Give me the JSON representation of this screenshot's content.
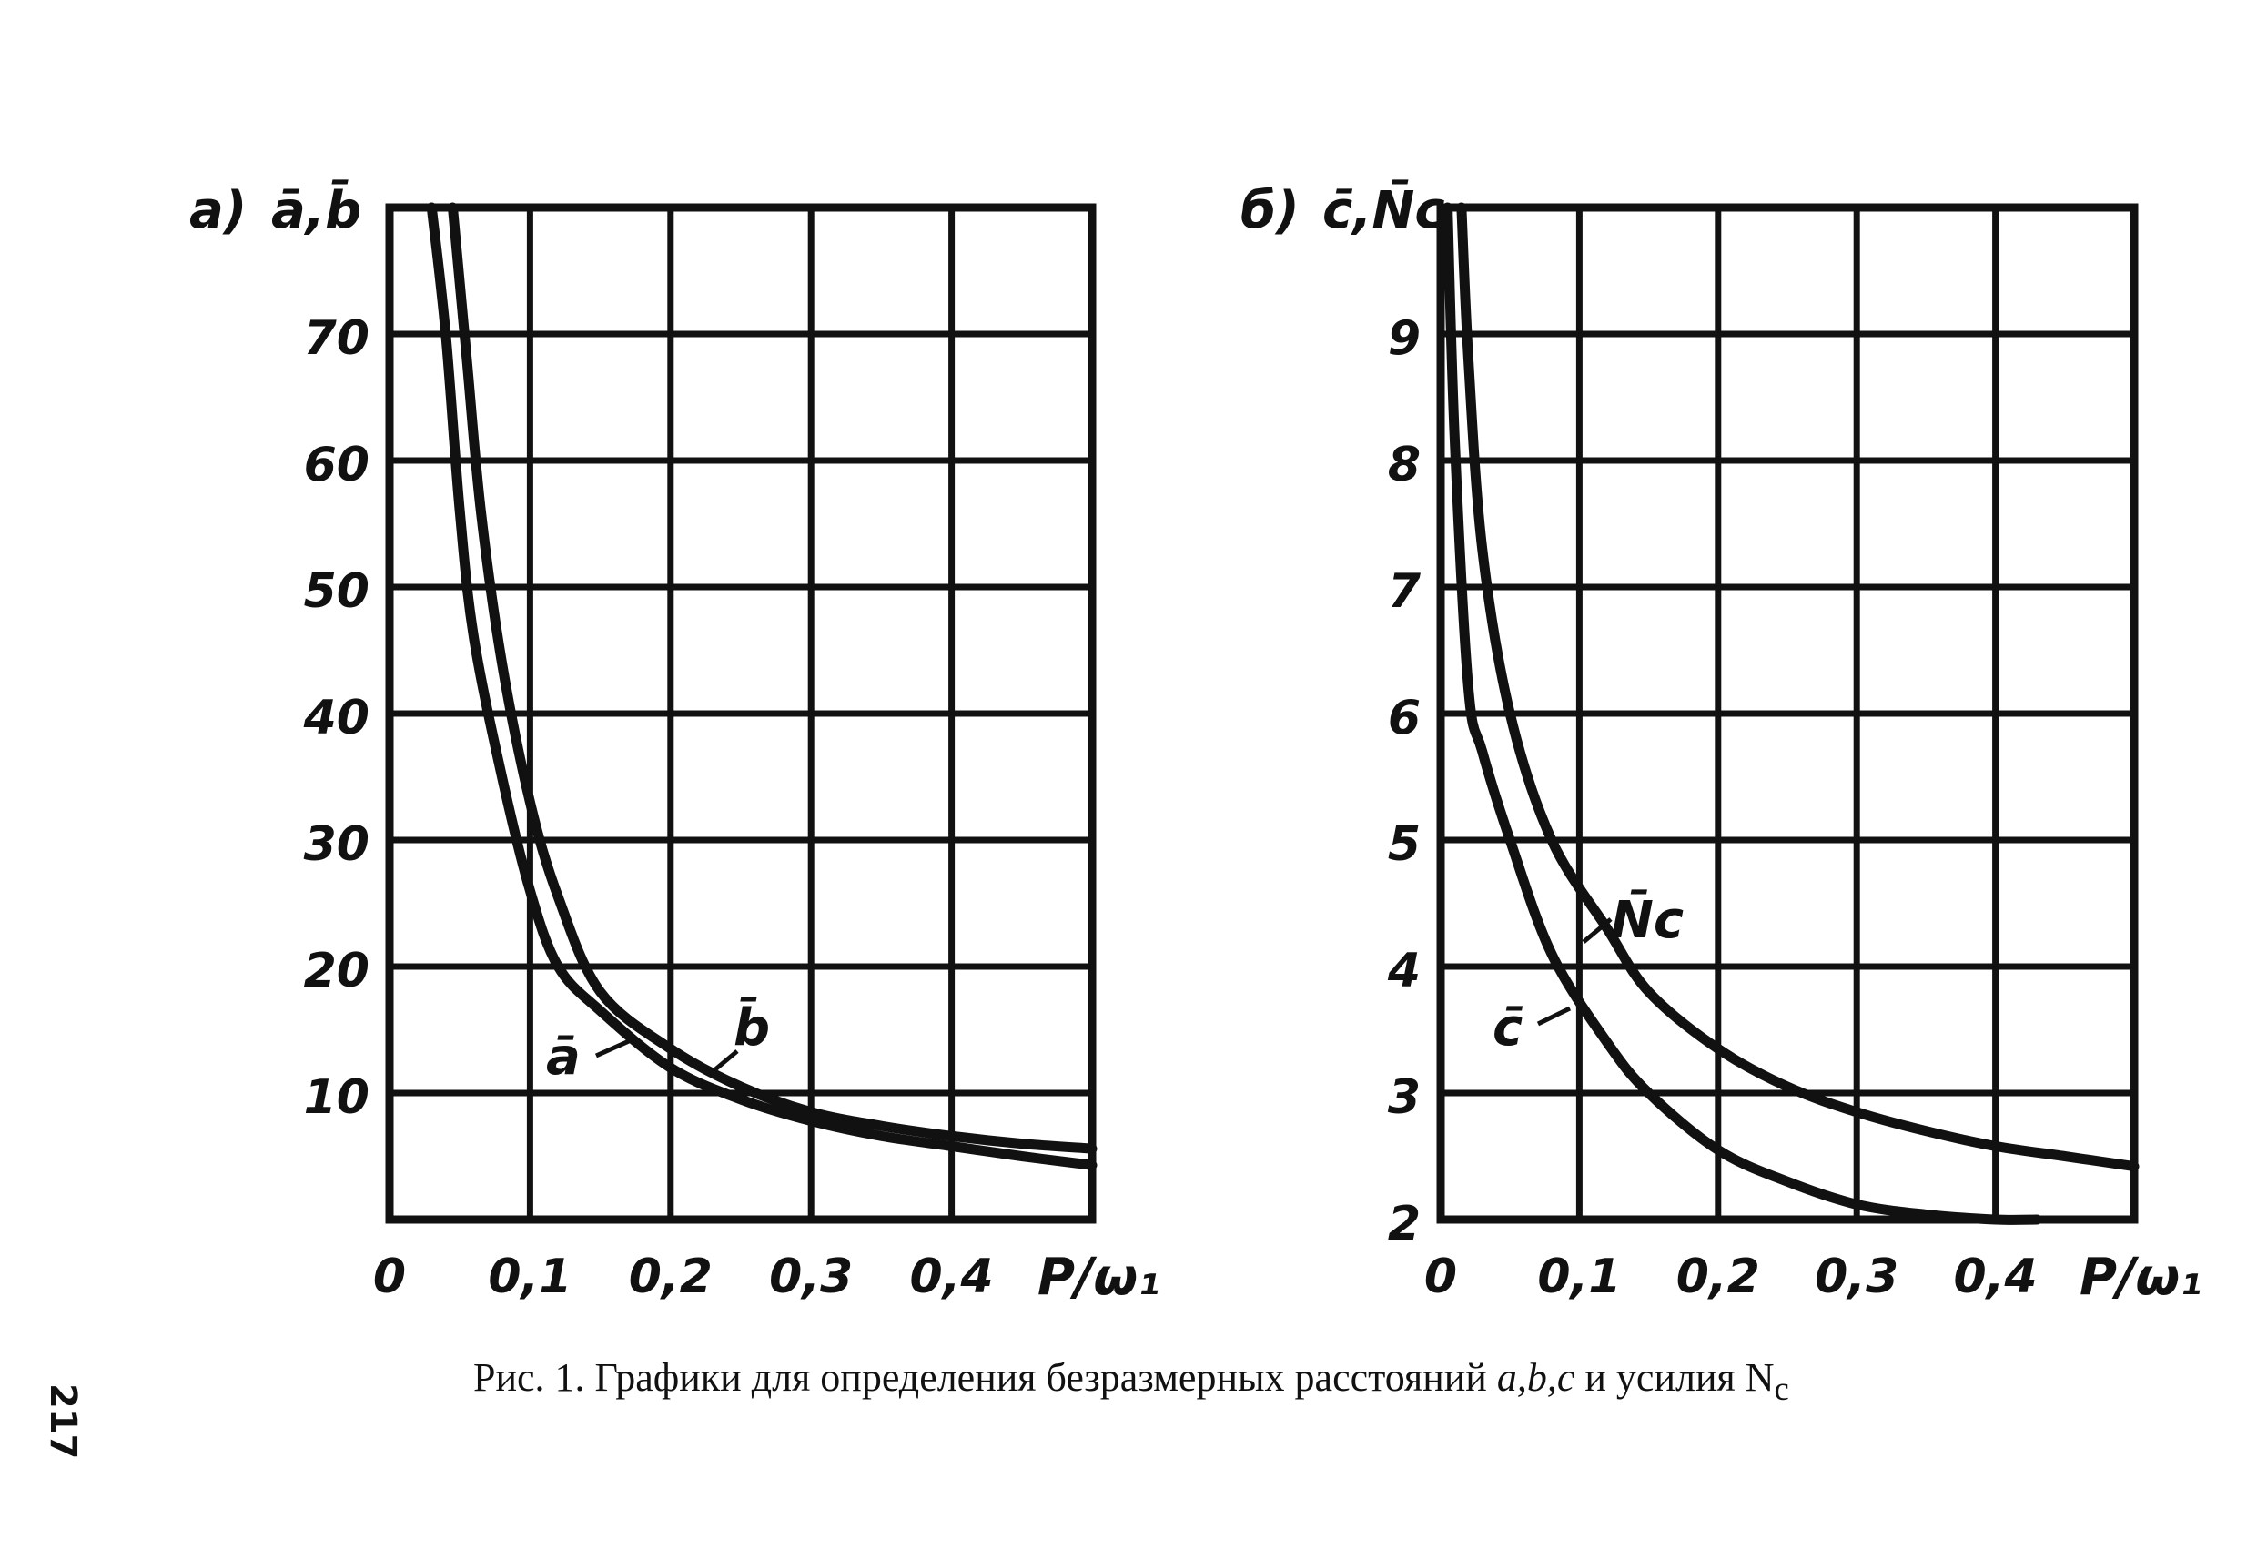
{
  "page_number": "217",
  "caption": {
    "prefix": "Рис. 1. Графики для определения безразмерных расстояний",
    "symbols": "a,b,c",
    "suffix": "и усилия N",
    "subscript": "c"
  },
  "chart_data": [
    {
      "type": "line",
      "panel_label": "а)",
      "ylabel": "ā,b̄",
      "xlabel": "P/ω₁",
      "xlim": [
        0,
        0.5
      ],
      "ylim": [
        0,
        80
      ],
      "x_ticks": [
        "0",
        "0,1",
        "0,2",
        "0,3",
        "0,4"
      ],
      "y_ticks": [
        "10",
        "20",
        "30",
        "40",
        "50",
        "60",
        "70"
      ],
      "grid": true,
      "series": [
        {
          "name": "ā",
          "x": [
            0.03,
            0.04,
            0.05,
            0.06,
            0.08,
            0.1,
            0.12,
            0.15,
            0.2,
            0.25,
            0.3,
            0.35,
            0.4,
            0.45,
            0.5
          ],
          "y": [
            80,
            70,
            56,
            46,
            35,
            26,
            20,
            16.5,
            12,
            9.5,
            7.8,
            6.6,
            5.8,
            5.0,
            4.3
          ]
        },
        {
          "name": "b̄",
          "x": [
            0.045,
            0.055,
            0.065,
            0.08,
            0.1,
            0.12,
            0.15,
            0.2,
            0.25,
            0.3,
            0.35,
            0.4,
            0.45,
            0.5
          ],
          "y": [
            80,
            68,
            56,
            44,
            33,
            25.5,
            18,
            13.5,
            10.5,
            8.5,
            7.4,
            6.6,
            6.0,
            5.6
          ]
        }
      ]
    },
    {
      "type": "line",
      "panel_label": "б)",
      "ylabel": "c̄,N̄c",
      "xlabel": "P/ω₁",
      "xlim": [
        0,
        0.5
      ],
      "ylim": [
        2,
        10
      ],
      "x_ticks": [
        "0",
        "0,1",
        "0,2",
        "0,3",
        "0,4"
      ],
      "y_ticks": [
        "2",
        "3",
        "4",
        "5",
        "6",
        "7",
        "8",
        "9"
      ],
      "grid": true,
      "series": [
        {
          "name": "c̄",
          "x": [
            0.005,
            0.01,
            0.02,
            0.03,
            0.05,
            0.08,
            0.12,
            0.15,
            0.2,
            0.25,
            0.3,
            0.35,
            0.4,
            0.43
          ],
          "y": [
            10,
            8.2,
            6.2,
            5.7,
            5.0,
            4.1,
            3.4,
            3.0,
            2.55,
            2.3,
            2.12,
            2.04,
            2.0,
            2.0
          ]
        },
        {
          "name": "N̄c",
          "x": [
            0.015,
            0.02,
            0.03,
            0.05,
            0.08,
            0.12,
            0.15,
            0.2,
            0.25,
            0.3,
            0.35,
            0.4,
            0.45,
            0.5
          ],
          "y": [
            10,
            8.8,
            7.3,
            6.0,
            5.0,
            4.3,
            3.8,
            3.35,
            3.05,
            2.85,
            2.7,
            2.58,
            2.5,
            2.42
          ]
        }
      ]
    }
  ]
}
